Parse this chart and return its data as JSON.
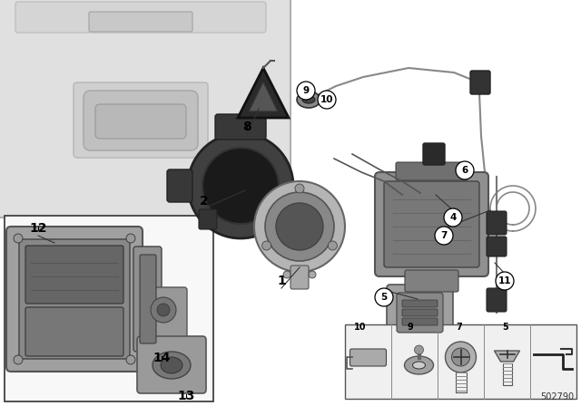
{
  "bg_color": "#ffffff",
  "part_number": "502790",
  "fig_width": 6.4,
  "fig_height": 4.48,
  "dpi": 100,
  "trunk_color": "#e0e0e0",
  "trunk_edge": "#b0b0b0",
  "part_dark": "#555555",
  "part_mid": "#888888",
  "part_light": "#aaaaaa",
  "part_silver": "#c0c0c0",
  "inset_bg": "#f8f8f8",
  "strip_bg": "#f0f0f0"
}
